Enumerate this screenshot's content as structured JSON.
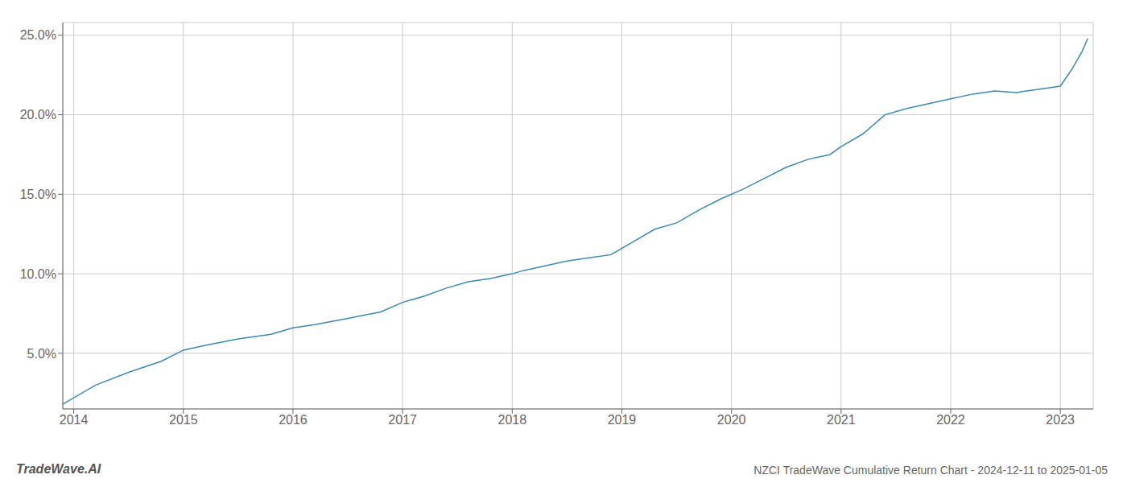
{
  "chart_data": {
    "type": "line",
    "title": "NZCI TradeWave Cumulative Return Chart - 2024-12-11 to 2025-01-05",
    "annotations": [
      "TradeWave.AI"
    ],
    "color": "#3a8ab8",
    "grid": true,
    "xlim": [
      2013.9,
      2023.3
    ],
    "ylim": [
      0.015,
      0.258
    ],
    "xticks": [
      2014,
      2015,
      2016,
      2017,
      2018,
      2019,
      2020,
      2021,
      2022,
      2023
    ],
    "yticks": [
      {
        "value": 0.05,
        "label": "5.0%"
      },
      {
        "value": 0.1,
        "label": "10.0%"
      },
      {
        "value": 0.15,
        "label": "15.0%"
      },
      {
        "value": 0.2,
        "label": "20.0%"
      },
      {
        "value": 0.25,
        "label": "25.0%"
      }
    ],
    "x": [
      2013.9,
      2014.0,
      2014.2,
      2014.5,
      2014.8,
      2015.0,
      2015.2,
      2015.5,
      2015.8,
      2016.0,
      2016.2,
      2016.5,
      2016.8,
      2017.0,
      2017.2,
      2017.4,
      2017.6,
      2017.8,
      2018.0,
      2018.1,
      2018.3,
      2018.5,
      2018.7,
      2018.9,
      2019.1,
      2019.3,
      2019.5,
      2019.7,
      2019.9,
      2020.1,
      2020.3,
      2020.5,
      2020.7,
      2020.9,
      2021.0,
      2021.2,
      2021.4,
      2021.6,
      2021.8,
      2022.0,
      2022.2,
      2022.4,
      2022.6,
      2022.8,
      2023.0,
      2023.1,
      2023.2,
      2023.25
    ],
    "values": [
      0.018,
      0.022,
      0.03,
      0.038,
      0.045,
      0.052,
      0.055,
      0.059,
      0.062,
      0.066,
      0.068,
      0.072,
      0.076,
      0.082,
      0.086,
      0.091,
      0.095,
      0.097,
      0.1,
      0.102,
      0.105,
      0.108,
      0.11,
      0.112,
      0.12,
      0.128,
      0.132,
      0.14,
      0.147,
      0.153,
      0.16,
      0.167,
      0.172,
      0.175,
      0.18,
      0.188,
      0.2,
      0.204,
      0.207,
      0.21,
      0.213,
      0.215,
      0.214,
      0.216,
      0.218,
      0.228,
      0.24,
      0.248
    ]
  }
}
